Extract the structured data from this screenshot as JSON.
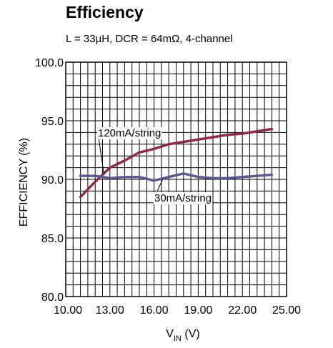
{
  "chart_data": {
    "type": "line",
    "title": "Efficiency",
    "subtitle": "L = 33µH, DCR = 64mΩ, 4-channel",
    "xlabel_main": "V",
    "xlabel_sub": "IN",
    "xlabel_unit": " (V)",
    "ylabel": "EFFICIENCY (%)",
    "xlim": [
      10,
      25
    ],
    "ylim": [
      80,
      100
    ],
    "x_ticks": [
      10,
      13,
      16,
      19,
      22,
      25
    ],
    "x_tick_labels": [
      "10.00",
      "13.00",
      "16.00",
      "19.00",
      "22.00",
      "25.00"
    ],
    "y_ticks": [
      80,
      85,
      90,
      95,
      100
    ],
    "y_tick_labels": [
      "80.0",
      "85.0",
      "90.0",
      "95.0",
      "100.0"
    ],
    "grid": true,
    "series": [
      {
        "name": "120mA/string",
        "color": "#8b2a4e",
        "x": [
          11,
          12,
          13,
          14,
          15,
          16,
          17,
          18,
          19,
          20,
          21,
          22,
          23,
          24
        ],
        "y": [
          88.5,
          89.8,
          91.0,
          91.6,
          92.3,
          92.6,
          93.0,
          93.2,
          93.4,
          93.6,
          93.8,
          93.9,
          94.1,
          94.3
        ]
      },
      {
        "name": "30mA/string",
        "color": "#5a5a8e",
        "x": [
          11,
          12,
          13,
          14,
          15,
          16,
          17,
          18,
          19,
          20,
          21,
          22,
          23,
          24
        ],
        "y": [
          90.3,
          90.3,
          90.1,
          90.2,
          90.2,
          89.9,
          90.2,
          90.5,
          90.2,
          90.1,
          90.1,
          90.2,
          90.3,
          90.4
        ]
      }
    ]
  }
}
